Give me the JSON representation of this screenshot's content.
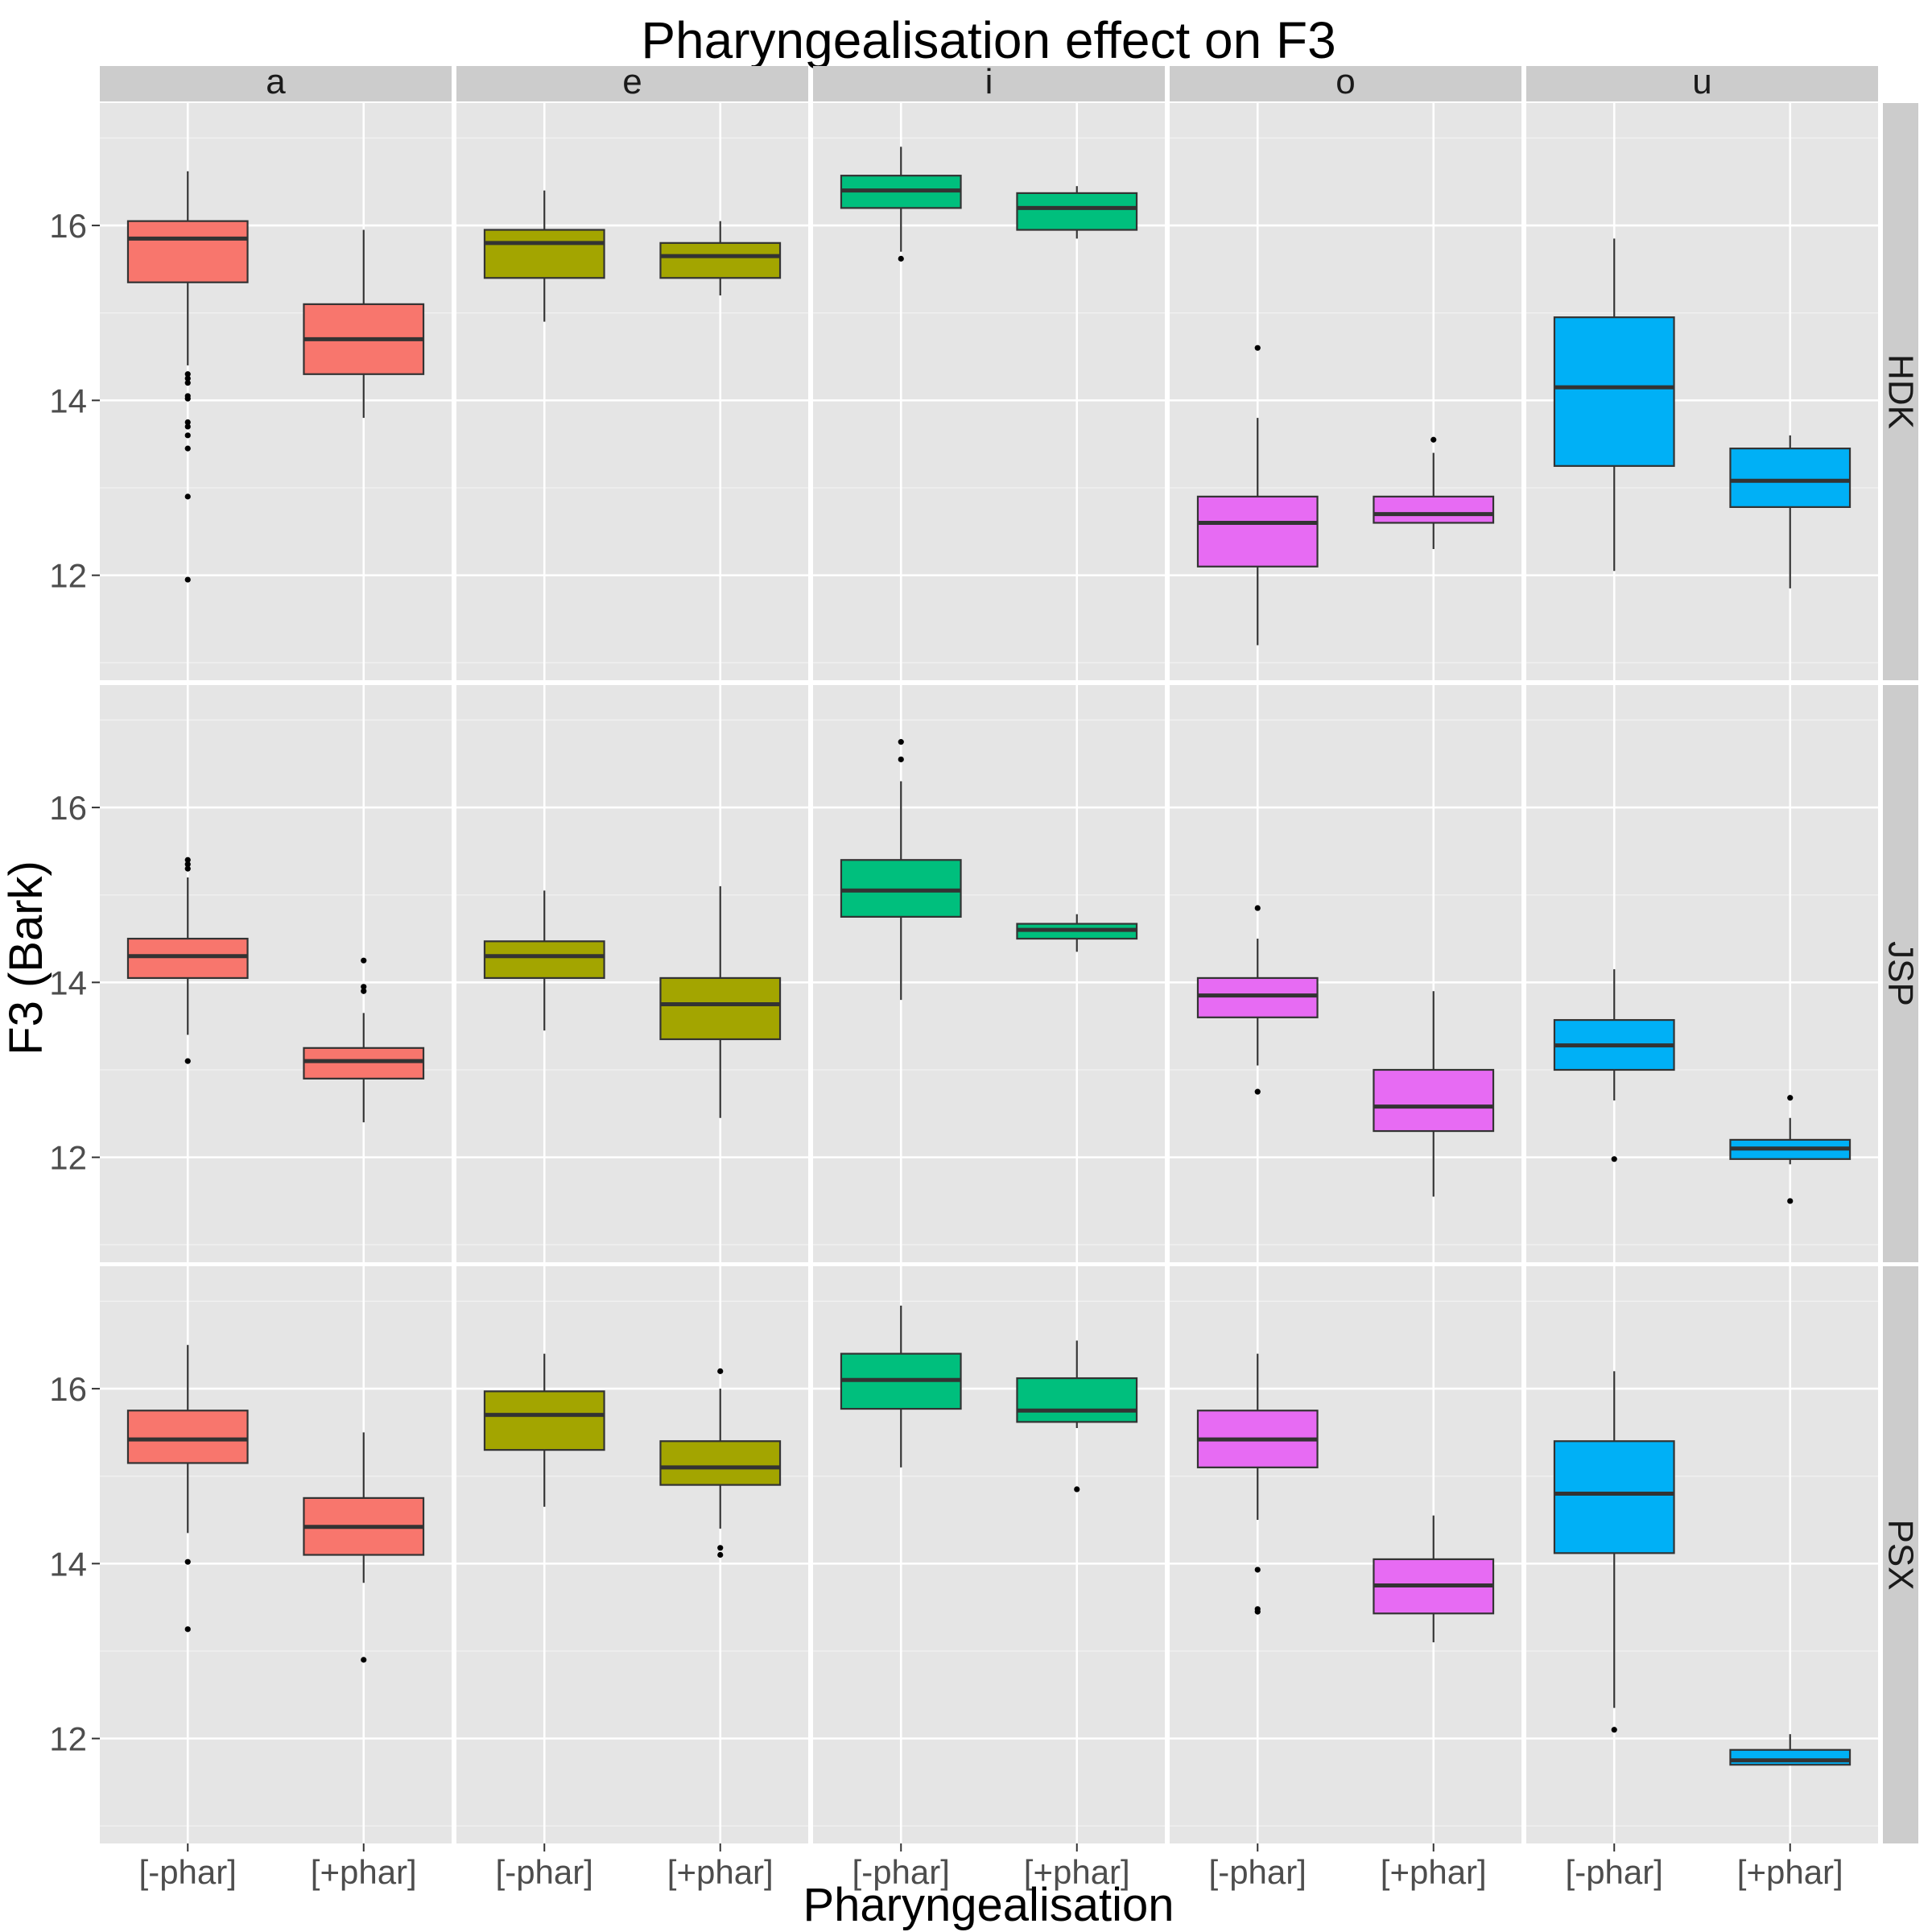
{
  "chart_data": {
    "type": "boxplot",
    "title": "Pharyngealisation effect on F3",
    "xlabel": "Pharyngealisation",
    "ylabel": "F3 (Bark)",
    "categories": [
      "[-phar]",
      "[+phar]"
    ],
    "facet_cols": [
      "a",
      "e",
      "i",
      "o",
      "u"
    ],
    "facet_rows": [
      "HDK",
      "JSP",
      "PSX"
    ],
    "yticks": [
      12,
      14,
      16
    ],
    "ylim": [
      10.8,
      17.4
    ],
    "grid": true,
    "colors": {
      "a": "#F8766D",
      "e": "#A3A500",
      "i": "#00BF7D",
      "o": "#E76BF3",
      "u": "#00B0F6"
    },
    "panel_bg": "#E5E5E5",
    "strip_bg": "#CCCCCC",
    "boxes": {
      "HDK": {
        "a": [
          {
            "min": 14.4,
            "q1": 15.35,
            "median": 15.85,
            "q3": 16.05,
            "max": 16.62,
            "outliers": [
              14.3,
              14.25,
              14.2,
              14.05,
              14.02,
              13.75,
              13.7,
              13.6,
              13.45,
              12.9,
              11.95
            ]
          },
          {
            "min": 13.8,
            "q1": 14.3,
            "median": 14.7,
            "q3": 15.1,
            "max": 15.95,
            "outliers": []
          }
        ],
        "e": [
          {
            "min": 14.9,
            "q1": 15.4,
            "median": 15.8,
            "q3": 15.95,
            "max": 16.4,
            "outliers": []
          },
          {
            "min": 15.2,
            "q1": 15.4,
            "median": 15.65,
            "q3": 15.8,
            "max": 16.05,
            "outliers": []
          }
        ],
        "i": [
          {
            "min": 15.7,
            "q1": 16.2,
            "median": 16.4,
            "q3": 16.57,
            "max": 16.9,
            "outliers": [
              15.62
            ]
          },
          {
            "min": 15.85,
            "q1": 15.95,
            "median": 16.2,
            "q3": 16.37,
            "max": 16.45,
            "outliers": []
          }
        ],
        "o": [
          {
            "min": 11.2,
            "q1": 12.1,
            "median": 12.6,
            "q3": 12.9,
            "max": 13.8,
            "outliers": [
              14.6
            ]
          },
          {
            "min": 12.3,
            "q1": 12.6,
            "median": 12.7,
            "q3": 12.9,
            "max": 13.4,
            "outliers": [
              13.55
            ]
          }
        ],
        "u": [
          {
            "min": 12.05,
            "q1": 13.25,
            "median": 14.15,
            "q3": 14.95,
            "max": 15.85,
            "outliers": []
          },
          {
            "min": 11.85,
            "q1": 12.78,
            "median": 13.08,
            "q3": 13.45,
            "max": 13.6,
            "outliers": []
          }
        ]
      },
      "JSP": {
        "a": [
          {
            "min": 13.4,
            "q1": 14.05,
            "median": 14.3,
            "q3": 14.5,
            "max": 15.2,
            "outliers": [
              15.4,
              15.35,
              15.3,
              13.1
            ]
          },
          {
            "min": 12.4,
            "q1": 12.9,
            "median": 13.1,
            "q3": 13.25,
            "max": 13.65,
            "outliers": [
              14.25,
              13.95,
              13.9
            ]
          }
        ],
        "e": [
          {
            "min": 13.45,
            "q1": 14.05,
            "median": 14.3,
            "q3": 14.47,
            "max": 15.05,
            "outliers": []
          },
          {
            "min": 12.45,
            "q1": 13.35,
            "median": 13.75,
            "q3": 14.05,
            "max": 15.1,
            "outliers": []
          }
        ],
        "i": [
          {
            "min": 13.8,
            "q1": 14.75,
            "median": 15.05,
            "q3": 15.4,
            "max": 16.3,
            "outliers": [
              16.75,
              16.55
            ]
          },
          {
            "min": 14.35,
            "q1": 14.5,
            "median": 14.6,
            "q3": 14.67,
            "max": 14.78,
            "outliers": []
          }
        ],
        "o": [
          {
            "min": 13.05,
            "q1": 13.6,
            "median": 13.85,
            "q3": 14.05,
            "max": 14.5,
            "outliers": [
              14.85,
              12.75
            ]
          },
          {
            "min": 11.55,
            "q1": 12.3,
            "median": 12.58,
            "q3": 13.0,
            "max": 13.9,
            "outliers": []
          }
        ],
        "u": [
          {
            "min": 12.65,
            "q1": 13.0,
            "median": 13.28,
            "q3": 13.57,
            "max": 14.15,
            "outliers": [
              11.98
            ]
          },
          {
            "min": 11.92,
            "q1": 11.98,
            "median": 12.1,
            "q3": 12.2,
            "max": 12.45,
            "outliers": [
              12.68,
              11.5
            ]
          }
        ]
      },
      "PSX": {
        "a": [
          {
            "min": 14.35,
            "q1": 15.15,
            "median": 15.42,
            "q3": 15.75,
            "max": 16.5,
            "outliers": [
              14.02,
              13.25
            ]
          },
          {
            "min": 13.78,
            "q1": 14.1,
            "median": 14.42,
            "q3": 14.75,
            "max": 15.5,
            "outliers": [
              12.9
            ]
          }
        ],
        "e": [
          {
            "min": 14.65,
            "q1": 15.3,
            "median": 15.7,
            "q3": 15.97,
            "max": 16.4,
            "outliers": []
          },
          {
            "min": 14.4,
            "q1": 14.9,
            "median": 15.1,
            "q3": 15.4,
            "max": 16.0,
            "outliers": [
              16.2,
              14.18,
              14.1
            ]
          }
        ],
        "i": [
          {
            "min": 15.1,
            "q1": 15.77,
            "median": 16.1,
            "q3": 16.4,
            "max": 16.95,
            "outliers": []
          },
          {
            "min": 15.55,
            "q1": 15.62,
            "median": 15.75,
            "q3": 16.12,
            "max": 16.55,
            "outliers": [
              14.85
            ]
          }
        ],
        "o": [
          {
            "min": 14.5,
            "q1": 15.1,
            "median": 15.42,
            "q3": 15.75,
            "max": 16.4,
            "outliers": [
              13.93,
              13.48,
              13.45
            ]
          },
          {
            "min": 13.1,
            "q1": 13.43,
            "median": 13.75,
            "q3": 14.05,
            "max": 14.55,
            "outliers": []
          }
        ],
        "u": [
          {
            "min": 12.35,
            "q1": 14.12,
            "median": 14.8,
            "q3": 15.4,
            "max": 16.2,
            "outliers": [
              12.1
            ]
          },
          {
            "min": 11.7,
            "q1": 11.7,
            "median": 11.75,
            "q3": 11.87,
            "max": 12.05,
            "outliers": []
          }
        ]
      }
    }
  }
}
